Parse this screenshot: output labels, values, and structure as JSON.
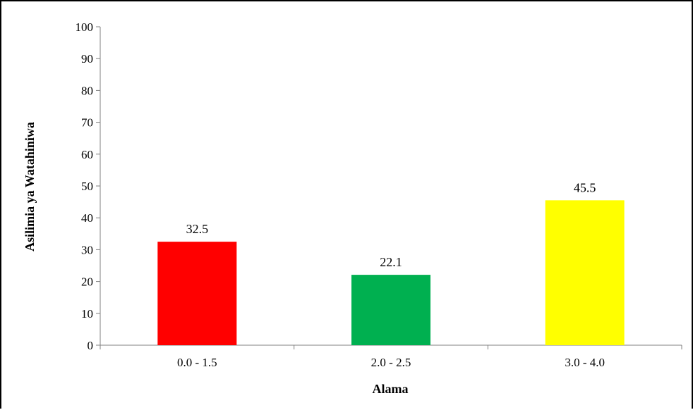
{
  "chart_data": {
    "type": "bar",
    "categories": [
      "0.0 - 1.5",
      "2.0 - 2.5",
      "3.0 - 4.0"
    ],
    "values": [
      32.5,
      22.1,
      45.5
    ],
    "data_labels": [
      "32.5",
      "22.1",
      "45.5"
    ],
    "colors": [
      "#ff0000",
      "#00b050",
      "#ffff00"
    ],
    "title": "",
    "xlabel": "Alama",
    "ylabel": "Asilimia ya Watahiniwa",
    "ylim": [
      0,
      100
    ],
    "yticks": [
      "0",
      "10",
      "20",
      "30",
      "40",
      "50",
      "60",
      "70",
      "80",
      "90",
      "100"
    ],
    "grid": false,
    "legend": "none"
  }
}
